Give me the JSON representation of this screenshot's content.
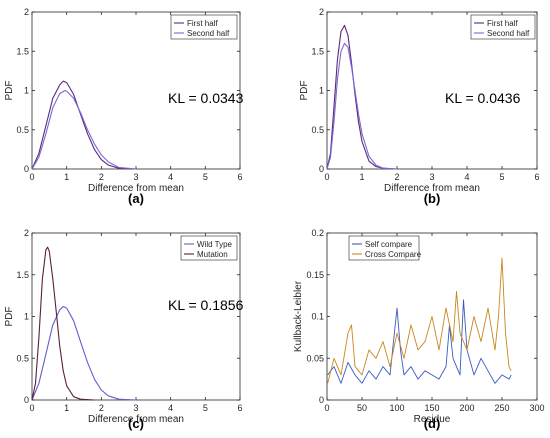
{
  "chart_data": [
    {
      "type": "line",
      "panel_label": "(a)",
      "annotation": "KL = 0.0343",
      "xlabel": "Difference from mean",
      "ylabel": "PDF",
      "xlim": [
        0,
        6
      ],
      "ylim": [
        0,
        2
      ],
      "xticks": [
        "0",
        "1",
        "2",
        "3",
        "4",
        "5",
        "6"
      ],
      "yticks": [
        "0",
        "0.5",
        "1",
        "1.5",
        "2"
      ],
      "legend_position": "top-right",
      "series": [
        {
          "name": "First half",
          "color": "#5a2a7a",
          "x": [
            0,
            0.2,
            0.4,
            0.6,
            0.8,
            0.9,
            1.0,
            1.2,
            1.4,
            1.6,
            1.8,
            2.0,
            2.2,
            2.5,
            3.0
          ],
          "values": [
            0,
            0.2,
            0.55,
            0.9,
            1.07,
            1.12,
            1.1,
            0.95,
            0.7,
            0.45,
            0.25,
            0.12,
            0.05,
            0.01,
            0
          ]
        },
        {
          "name": "Second half",
          "color": "#7b68d8",
          "x": [
            0,
            0.2,
            0.4,
            0.6,
            0.8,
            0.95,
            1.0,
            1.2,
            1.4,
            1.6,
            1.8,
            2.0,
            2.2,
            2.5,
            3.0
          ],
          "values": [
            0,
            0.15,
            0.45,
            0.78,
            0.96,
            1.0,
            0.99,
            0.9,
            0.72,
            0.5,
            0.32,
            0.18,
            0.09,
            0.02,
            0
          ]
        }
      ]
    },
    {
      "type": "line",
      "panel_label": "(b)",
      "annotation": "KL = 0.0436",
      "xlabel": "Difference from mean",
      "ylabel": "PDF",
      "xlim": [
        0,
        6
      ],
      "ylim": [
        0,
        2
      ],
      "xticks": [
        "0",
        "1",
        "2",
        "3",
        "4",
        "5",
        "6"
      ],
      "yticks": [
        "0",
        "0.5",
        "1",
        "1.5",
        "2"
      ],
      "legend_position": "top-right",
      "series": [
        {
          "name": "First half",
          "color": "#5a2a7a",
          "x": [
            0,
            0.1,
            0.2,
            0.3,
            0.4,
            0.5,
            0.6,
            0.7,
            0.8,
            0.9,
            1.0,
            1.2,
            1.4,
            1.6,
            2.0
          ],
          "values": [
            0,
            0.2,
            0.8,
            1.4,
            1.75,
            1.83,
            1.7,
            1.35,
            0.95,
            0.6,
            0.35,
            0.1,
            0.03,
            0.01,
            0
          ]
        },
        {
          "name": "Second half",
          "color": "#7b68d8",
          "x": [
            0,
            0.1,
            0.2,
            0.3,
            0.4,
            0.5,
            0.6,
            0.7,
            0.8,
            0.9,
            1.0,
            1.2,
            1.4,
            1.6,
            2.0
          ],
          "values": [
            0,
            0.15,
            0.6,
            1.15,
            1.5,
            1.6,
            1.55,
            1.3,
            1.0,
            0.7,
            0.45,
            0.16,
            0.05,
            0.01,
            0
          ]
        }
      ]
    },
    {
      "type": "line",
      "panel_label": "(c)",
      "annotation": "KL = 0.1856",
      "xlabel": "Difference from mean",
      "ylabel": "PDF",
      "xlim": [
        0,
        6
      ],
      "ylim": [
        0,
        2
      ],
      "xticks": [
        "0",
        "1",
        "2",
        "3",
        "4",
        "5",
        "6"
      ],
      "yticks": [
        "0",
        "0.5",
        "1",
        "1.5",
        "2"
      ],
      "legend_position": "top-right",
      "series": [
        {
          "name": "Wild Type",
          "color": "#6a5acd",
          "x": [
            0,
            0.2,
            0.4,
            0.6,
            0.8,
            0.9,
            1.0,
            1.2,
            1.4,
            1.6,
            1.8,
            2.0,
            2.2,
            2.5,
            3.0
          ],
          "values": [
            0,
            0.2,
            0.55,
            0.9,
            1.08,
            1.12,
            1.1,
            0.95,
            0.7,
            0.45,
            0.25,
            0.12,
            0.05,
            0.01,
            0
          ]
        },
        {
          "name": "Mutation",
          "color": "#5a1f3a",
          "x": [
            0,
            0.1,
            0.2,
            0.3,
            0.4,
            0.45,
            0.5,
            0.6,
            0.7,
            0.8,
            0.9,
            1.0,
            1.2,
            1.4,
            1.8
          ],
          "values": [
            0,
            0.2,
            0.75,
            1.45,
            1.8,
            1.83,
            1.78,
            1.45,
            1.05,
            0.65,
            0.35,
            0.17,
            0.04,
            0.01,
            0
          ]
        }
      ]
    },
    {
      "type": "line",
      "panel_label": "(d)",
      "xlabel": "Residue",
      "ylabel": "Kullback-Leibler",
      "xlim": [
        0,
        300
      ],
      "ylim": [
        0,
        0.2
      ],
      "xticks": [
        "0",
        "50",
        "100",
        "150",
        "200",
        "250",
        "300"
      ],
      "yticks": [
        "0",
        "0.05",
        "0.1",
        "0.15",
        "0.2"
      ],
      "legend_position": "top-left",
      "series": [
        {
          "name": "Self compare",
          "color": "#3b5bbf",
          "x": [
            1,
            10,
            20,
            30,
            40,
            50,
            60,
            70,
            80,
            90,
            95,
            100,
            105,
            110,
            120,
            130,
            140,
            150,
            160,
            170,
            175,
            180,
            190,
            195,
            200,
            210,
            220,
            230,
            240,
            250,
            260,
            263
          ],
          "values": [
            0.03,
            0.04,
            0.02,
            0.045,
            0.03,
            0.02,
            0.035,
            0.025,
            0.04,
            0.03,
            0.07,
            0.11,
            0.06,
            0.03,
            0.04,
            0.025,
            0.035,
            0.03,
            0.025,
            0.04,
            0.09,
            0.05,
            0.03,
            0.12,
            0.06,
            0.03,
            0.05,
            0.035,
            0.02,
            0.03,
            0.025,
            0.03
          ]
        },
        {
          "name": "Cross Compare",
          "color": "#c8871e",
          "x": [
            1,
            10,
            20,
            30,
            35,
            40,
            50,
            60,
            70,
            80,
            90,
            100,
            110,
            120,
            130,
            140,
            150,
            160,
            170,
            180,
            185,
            190,
            200,
            210,
            220,
            230,
            240,
            245,
            250,
            255,
            260,
            263
          ],
          "values": [
            0.02,
            0.05,
            0.03,
            0.08,
            0.09,
            0.04,
            0.03,
            0.06,
            0.05,
            0.07,
            0.04,
            0.08,
            0.05,
            0.09,
            0.06,
            0.07,
            0.1,
            0.06,
            0.11,
            0.07,
            0.13,
            0.08,
            0.06,
            0.1,
            0.07,
            0.11,
            0.06,
            0.1,
            0.17,
            0.08,
            0.04,
            0.035
          ]
        }
      ]
    }
  ]
}
